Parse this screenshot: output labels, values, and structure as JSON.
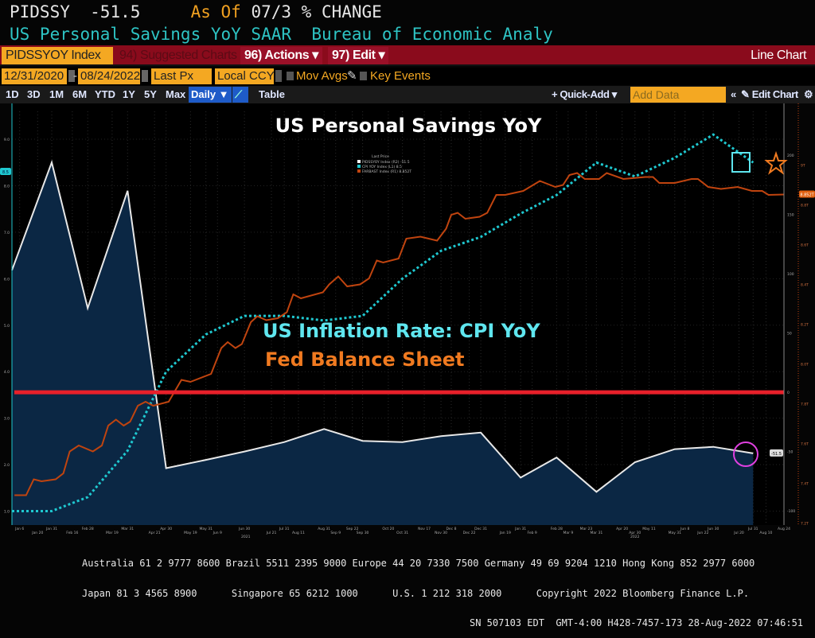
{
  "header": {
    "ticker": "PIDSSY",
    "value": "-51.5",
    "as_of_label": "As Of",
    "as_of_rest": "07/3 % CHANGE",
    "description": "US Personal Savings YoY SAAR",
    "source": "Bureau of Economic Analy"
  },
  "toolbar": {
    "security": "PIDSSYOY Index",
    "suggested": "94) Suggested Charts",
    "actions": "96) Actions ▾",
    "edit": "97) Edit ▾",
    "chart_type": "Line Chart"
  },
  "controls": {
    "start_date": "12/31/2020",
    "dash": "-",
    "end_date": "08/24/2022",
    "price": "Last Px",
    "currency": "Local CCY",
    "mov_avgs": "Mov Avgs",
    "key_events": "Key Events"
  },
  "tabs": {
    "periods": [
      "1D",
      "3D",
      "1M",
      "6M",
      "YTD",
      "1Y",
      "5Y",
      "Max"
    ],
    "frequency": "Daily ▼",
    "table": "Table",
    "quick_add": "+ Quick-Add ▾",
    "add_data_placeholder": "Add Data",
    "collapse": "«",
    "edit_chart": "✎ Edit Chart",
    "settings": "⚙"
  },
  "footer": {
    "line1": "Australia 61 2 9777 8600 Brazil 5511 2395 9000 Europe 44 20 7330 7500 Germany 49 69 9204 1210 Hong Kong 852 2977 6000",
    "line2": "Japan 81 3 4565 8900      Singapore 65 6212 1000      U.S. 1 212 318 2000      Copyright 2022 Bloomberg Finance L.P.",
    "line3": "SN 507103 EDT  GMT-4:00 H428-7457-173 28-Aug-2022 07:46:51"
  },
  "colors": {
    "savings": "#e8e8e8",
    "cpi": "#1fc8d0",
    "fed": "#c0440f",
    "threshold": "#e8202a",
    "fill": "#0b2744",
    "brand_red": "#8a0b1c",
    "input_orange": "#f4a822"
  },
  "chart_data": {
    "type": "line",
    "title": "US Personal Savings YoY",
    "annotations": [
      "US Inflation Rate: CPI YoY",
      "Fed Balance Sheet"
    ],
    "legend": {
      "header": "Last Price",
      "entries": [
        "PIDSSYOY Index (R2) -51.5",
        "CPI YOY Index (L1) 8.5",
        "FARBAST Index (R1) 8.852T"
      ]
    },
    "axes": {
      "left": {
        "ticks": [
          "1.0",
          "2.0",
          "3.0",
          "4.0",
          "5.0",
          "6.0",
          "7.0",
          "8.0",
          "9.0"
        ],
        "range": [
          0.7,
          9.6
        ],
        "last_tag": "8.5"
      },
      "right_white": {
        "ticks": [
          "-100",
          "-50",
          "0",
          "50",
          "100",
          "150",
          "200"
        ],
        "range": [
          -112,
          237
        ],
        "last_tag": "-51.5"
      },
      "right_orange": {
        "ticks": [
          "7.2T",
          "7.4T",
          "7.6T",
          "7.8T",
          "8.0T",
          "8.2T",
          "8.4T",
          "8.6T",
          "8.8T",
          "9T"
        ],
        "range": [
          7.19,
          9.27
        ],
        "last_tag": "8.852T"
      },
      "x_years": [
        {
          "date": "2021-07-01",
          "label": "2021"
        },
        {
          "date": "2022-04-30",
          "label": "2022"
        }
      ],
      "x_ticks": [
        {
          "date": "2021-01-06",
          "label": "Jan 6"
        },
        {
          "date": "2021-01-20",
          "label": "Jan 20"
        },
        {
          "date": "2021-01-31",
          "label": "Jan 31"
        },
        {
          "date": "2021-02-16",
          "label": "Feb 16"
        },
        {
          "date": "2021-02-28",
          "label": "Feb 28"
        },
        {
          "date": "2021-03-19",
          "label": "Mar 19"
        },
        {
          "date": "2021-03-31",
          "label": "Mar 31"
        },
        {
          "date": "2021-04-21",
          "label": "Apr 21"
        },
        {
          "date": "2021-04-30",
          "label": "Apr 30"
        },
        {
          "date": "2021-05-19",
          "label": "May 19"
        },
        {
          "date": "2021-05-31",
          "label": "May 31"
        },
        {
          "date": "2021-06-09",
          "label": "Jun 9"
        },
        {
          "date": "2021-06-30",
          "label": "Jun 30"
        },
        {
          "date": "2021-07-21",
          "label": "Jul 21"
        },
        {
          "date": "2021-07-31",
          "label": "Jul 31"
        },
        {
          "date": "2021-08-11",
          "label": "Aug 11"
        },
        {
          "date": "2021-08-31",
          "label": "Aug 31"
        },
        {
          "date": "2021-09-09",
          "label": "Sep 9"
        },
        {
          "date": "2021-09-22",
          "label": "Sep 22"
        },
        {
          "date": "2021-09-30",
          "label": "Sep 30"
        },
        {
          "date": "2021-10-20",
          "label": "Oct 20"
        },
        {
          "date": "2021-10-31",
          "label": "Oct 31"
        },
        {
          "date": "2021-11-17",
          "label": "Nov 17"
        },
        {
          "date": "2021-11-30",
          "label": "Nov 30"
        },
        {
          "date": "2021-12-08",
          "label": "Dec 8"
        },
        {
          "date": "2021-12-22",
          "label": "Dec 22"
        },
        {
          "date": "2021-12-31",
          "label": "Dec 31"
        },
        {
          "date": "2022-01-19",
          "label": "Jan 19"
        },
        {
          "date": "2022-01-31",
          "label": "Jan 31"
        },
        {
          "date": "2022-02-09",
          "label": "Feb 9"
        },
        {
          "date": "2022-02-28",
          "label": "Feb 28"
        },
        {
          "date": "2022-03-09",
          "label": "Mar 9"
        },
        {
          "date": "2022-03-23",
          "label": "Mar 23"
        },
        {
          "date": "2022-03-31",
          "label": "Mar 31"
        },
        {
          "date": "2022-04-20",
          "label": "Apr 20"
        },
        {
          "date": "2022-04-30",
          "label": "Apr 30"
        },
        {
          "date": "2022-05-11",
          "label": "May 11"
        },
        {
          "date": "2022-05-31",
          "label": "May 31"
        },
        {
          "date": "2022-06-08",
          "label": "Jun 8"
        },
        {
          "date": "2022-06-22",
          "label": "Jun 22"
        },
        {
          "date": "2022-06-30",
          "label": "Jun 30"
        },
        {
          "date": "2022-07-20",
          "label": "Jul 20"
        },
        {
          "date": "2022-07-31",
          "label": "Jul 31"
        },
        {
          "date": "2022-08-10",
          "label": "Aug 10"
        },
        {
          "date": "2022-08-24",
          "label": "Aug 24"
        }
      ],
      "x_range": [
        "2020-12-31",
        "2022-08-24"
      ]
    },
    "threshold": {
      "axis": "right_white",
      "value": 0
    },
    "series": [
      {
        "name": "PIDSSYOY Index",
        "axis": "right_white",
        "style": "area",
        "x": [
          "2020-12-31",
          "2021-01-31",
          "2021-02-28",
          "2021-03-31",
          "2021-04-30",
          "2021-05-31",
          "2021-06-30",
          "2021-07-31",
          "2021-08-31",
          "2021-09-30",
          "2021-10-31",
          "2021-11-30",
          "2021-12-31",
          "2022-01-31",
          "2022-02-28",
          "2022-03-31",
          "2022-04-30",
          "2022-05-31",
          "2022-06-30",
          "2022-07-31"
        ],
        "y": [
          103,
          194,
          71,
          170,
          -64,
          -57,
          -50,
          -42,
          -31,
          -41,
          -42,
          -37,
          -34,
          -72,
          -55,
          -84,
          -59,
          -48,
          -46,
          -51.5
        ]
      },
      {
        "name": "CPI YOY Index",
        "axis": "left",
        "style": "dotted",
        "x": [
          "2020-12-31",
          "2021-01-31",
          "2021-02-28",
          "2021-03-31",
          "2021-04-30",
          "2021-05-31",
          "2021-06-30",
          "2021-07-31",
          "2021-08-31",
          "2021-09-30",
          "2021-10-31",
          "2021-11-30",
          "2021-12-31",
          "2022-01-31",
          "2022-02-28",
          "2022-03-31",
          "2022-04-30",
          "2022-05-31",
          "2022-06-30",
          "2022-07-31"
        ],
        "y": [
          1.0,
          1.0,
          1.3,
          2.3,
          4.0,
          4.8,
          5.2,
          5.2,
          5.1,
          5.2,
          6.0,
          6.6,
          6.9,
          7.4,
          7.8,
          8.5,
          8.2,
          8.6,
          9.1,
          8.5
        ]
      },
      {
        "name": "FARBAST Index",
        "axis": "right_orange",
        "style": "solid",
        "x": [
          "2021-01-02",
          "2021-01-11",
          "2021-01-17",
          "2021-01-23",
          "2021-02-03",
          "2021-02-09",
          "2021-02-14",
          "2021-02-21",
          "2021-03-04",
          "2021-03-11",
          "2021-03-16",
          "2021-03-22",
          "2021-03-28",
          "2021-04-02",
          "2021-04-08",
          "2021-04-14",
          "2021-04-20",
          "2021-05-02",
          "2021-05-12",
          "2021-05-19",
          "2021-06-04",
          "2021-06-12",
          "2021-06-17",
          "2021-06-23",
          "2021-06-28",
          "2021-07-05",
          "2021-07-10",
          "2021-07-17",
          "2021-07-26",
          "2021-08-02",
          "2021-08-07",
          "2021-08-13",
          "2021-08-30",
          "2021-09-04",
          "2021-09-11",
          "2021-09-18",
          "2021-09-28",
          "2021-10-05",
          "2021-10-11",
          "2021-10-16",
          "2021-10-28",
          "2021-11-03",
          "2021-11-14",
          "2021-11-27",
          "2021-12-04",
          "2021-12-08",
          "2021-12-13",
          "2021-12-19",
          "2021-12-30",
          "2022-01-05",
          "2022-01-12",
          "2022-01-19",
          "2022-02-02",
          "2022-02-15",
          "2022-02-27",
          "2022-03-05",
          "2022-03-10",
          "2022-03-16",
          "2022-03-22",
          "2022-04-02",
          "2022-04-08",
          "2022-04-21",
          "2022-05-08",
          "2022-05-14",
          "2022-05-19",
          "2022-05-31",
          "2022-06-13",
          "2022-06-18",
          "2022-06-26",
          "2022-07-06",
          "2022-07-19",
          "2022-07-30",
          "2022-08-07",
          "2022-08-12",
          "2022-08-24"
        ],
        "y": [
          7.34,
          7.34,
          7.42,
          7.41,
          7.42,
          7.45,
          7.56,
          7.59,
          7.56,
          7.59,
          7.69,
          7.72,
          7.69,
          7.71,
          7.79,
          7.81,
          7.79,
          7.81,
          7.92,
          7.91,
          7.95,
          8.08,
          8.11,
          8.08,
          8.1,
          8.21,
          8.24,
          8.22,
          8.23,
          8.26,
          8.35,
          8.33,
          8.36,
          8.4,
          8.44,
          8.39,
          8.4,
          8.43,
          8.52,
          8.51,
          8.53,
          8.63,
          8.64,
          8.62,
          8.68,
          8.75,
          8.76,
          8.73,
          8.74,
          8.76,
          8.85,
          8.85,
          8.87,
          8.92,
          8.89,
          8.9,
          8.95,
          8.96,
          8.93,
          8.93,
          8.96,
          8.93,
          8.94,
          8.94,
          8.91,
          8.91,
          8.93,
          8.93,
          8.89,
          8.88,
          8.89,
          8.87,
          8.87,
          8.85,
          8.852
        ]
      }
    ]
  }
}
